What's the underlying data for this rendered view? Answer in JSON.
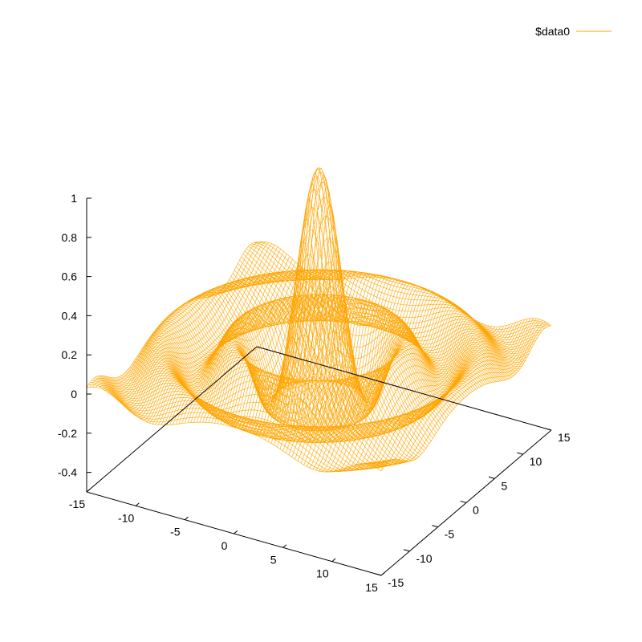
{
  "chart_data": {
    "type": "surface",
    "function": "sin(r)/r",
    "series": [
      {
        "name": "$data0",
        "color": "#ffa500"
      }
    ],
    "x_range": [
      -15,
      15
    ],
    "y_range": [
      -15,
      15
    ],
    "z_range": [
      -0.5,
      1
    ],
    "x_ticks": [
      -15,
      -10,
      -5,
      0,
      5,
      10,
      15
    ],
    "y_ticks": [
      -15,
      -10,
      -5,
      0,
      5,
      10,
      15
    ],
    "z_ticks": [
      -0.4,
      -0.2,
      0,
      0.2,
      0.4,
      0.6,
      0.8,
      1
    ],
    "x_tick_labels": [
      "-15",
      "-10",
      "-5",
      "0",
      "5",
      "10",
      "15"
    ],
    "y_tick_labels": [
      "-15",
      "-10",
      "-5",
      "0",
      "5",
      "10",
      "15"
    ],
    "z_tick_labels": [
      "-0.4",
      "-0.2",
      "0",
      "0.2",
      "0.4",
      "0.6",
      "0.8",
      "1"
    ],
    "grid_samples": 100,
    "legend_position": "top-right",
    "grid": false
  }
}
